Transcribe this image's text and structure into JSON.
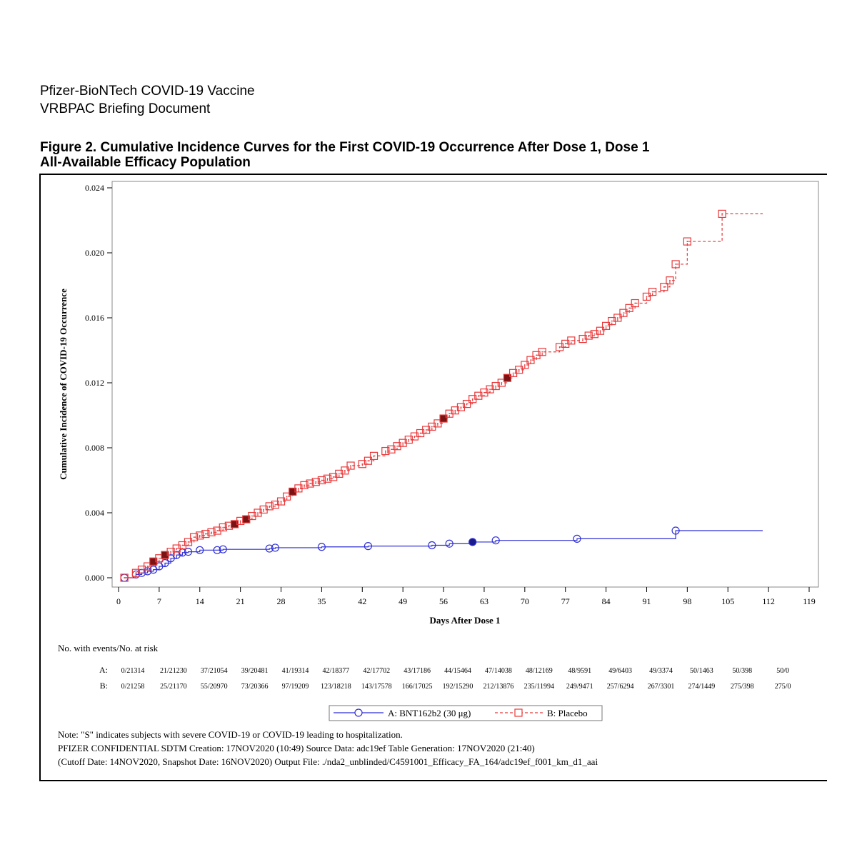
{
  "header": {
    "line1": "Pfizer-BioNTech COVID-19 Vaccine",
    "line2": "VRBPAC Briefing Document"
  },
  "figure": {
    "title_line1": "Figure 2. Cumulative Incidence Curves for the First COVID-19 Occurrence After Dose 1, Dose 1",
    "title_line2": "All-Available Efficacy Population"
  },
  "chart_data": {
    "type": "line",
    "subtype": "step (Kaplan-Meier cumulative incidence)",
    "xlabel": "Days After Dose 1",
    "ylabel": "Cumulative Incidence of COVID-19 Occurrence",
    "xlim": [
      0,
      119
    ],
    "ylim": [
      0,
      0.024
    ],
    "xticks": [
      0,
      7,
      14,
      21,
      28,
      35,
      42,
      49,
      56,
      63,
      70,
      77,
      84,
      91,
      98,
      105,
      112,
      119
    ],
    "yticks": [
      "0.000",
      "0.004",
      "0.008",
      "0.012",
      "0.016",
      "0.020",
      "0.024"
    ],
    "grid": false,
    "legend_position": "bottom",
    "series": [
      {
        "name": "A: BNT162b2 (30 μg)",
        "color": "#2f2fd6",
        "marker": "circle",
        "line_style": "solid",
        "points": [
          [
            1,
            0.0
          ],
          [
            3,
            0.0002
          ],
          [
            4,
            0.0003
          ],
          [
            5,
            0.0004
          ],
          [
            6,
            0.0005
          ],
          [
            7,
            0.0007
          ],
          [
            8,
            0.0009
          ],
          [
            9,
            0.0012
          ],
          [
            10,
            0.0014
          ],
          [
            11,
            0.00155
          ],
          [
            12,
            0.0016
          ],
          [
            14,
            0.0017
          ],
          [
            17,
            0.0017
          ],
          [
            18,
            0.00175
          ],
          [
            26,
            0.0018
          ],
          [
            27,
            0.00185
          ],
          [
            35,
            0.0019
          ],
          [
            43,
            0.00195
          ],
          [
            54,
            0.002
          ],
          [
            57,
            0.0021
          ],
          [
            61,
            0.0022
          ],
          [
            65,
            0.0023
          ],
          [
            79,
            0.0024
          ],
          [
            96,
            0.0029
          ]
        ],
        "end_x": 111,
        "severe_points": [
          [
            61,
            0.0022
          ]
        ]
      },
      {
        "name": "B: Placebo",
        "color": "#e8383a",
        "marker": "square",
        "line_style": "dashed",
        "points": [
          [
            1,
            0.0
          ],
          [
            3,
            0.0003
          ],
          [
            4,
            0.0005
          ],
          [
            5,
            0.0007
          ],
          [
            6,
            0.001
          ],
          [
            7,
            0.0012
          ],
          [
            8,
            0.0014
          ],
          [
            9,
            0.0016
          ],
          [
            10,
            0.0018
          ],
          [
            11,
            0.002
          ],
          [
            12,
            0.0022
          ],
          [
            13,
            0.0025
          ],
          [
            14,
            0.0026
          ],
          [
            15,
            0.0027
          ],
          [
            16,
            0.0028
          ],
          [
            17,
            0.0029
          ],
          [
            18,
            0.0031
          ],
          [
            19,
            0.0032
          ],
          [
            20,
            0.0033
          ],
          [
            21,
            0.0035
          ],
          [
            22,
            0.0036
          ],
          [
            23,
            0.0038
          ],
          [
            24,
            0.004
          ],
          [
            25,
            0.0042
          ],
          [
            26,
            0.0044
          ],
          [
            27,
            0.0045
          ],
          [
            28,
            0.0047
          ],
          [
            29,
            0.005
          ],
          [
            30,
            0.0053
          ],
          [
            31,
            0.0055
          ],
          [
            32,
            0.0057
          ],
          [
            33,
            0.0058
          ],
          [
            34,
            0.0059
          ],
          [
            35,
            0.006
          ],
          [
            36,
            0.0061
          ],
          [
            37,
            0.0062
          ],
          [
            38,
            0.0064
          ],
          [
            39,
            0.0066
          ],
          [
            40,
            0.0069
          ],
          [
            42,
            0.007
          ],
          [
            43,
            0.0072
          ],
          [
            44,
            0.0075
          ],
          [
            46,
            0.0078
          ],
          [
            47,
            0.0079
          ],
          [
            48,
            0.0081
          ],
          [
            49,
            0.0083
          ],
          [
            50,
            0.0085
          ],
          [
            51,
            0.0087
          ],
          [
            52,
            0.0089
          ],
          [
            53,
            0.0091
          ],
          [
            54,
            0.0093
          ],
          [
            55,
            0.0095
          ],
          [
            56,
            0.0098
          ],
          [
            57,
            0.0101
          ],
          [
            58,
            0.0103
          ],
          [
            59,
            0.0105
          ],
          [
            60,
            0.0107
          ],
          [
            61,
            0.011
          ],
          [
            62,
            0.0112
          ],
          [
            63,
            0.0114
          ],
          [
            64,
            0.0116
          ],
          [
            65,
            0.0118
          ],
          [
            66,
            0.012
          ],
          [
            67,
            0.0123
          ],
          [
            68,
            0.0126
          ],
          [
            69,
            0.0128
          ],
          [
            70,
            0.0131
          ],
          [
            71,
            0.0134
          ],
          [
            72,
            0.0137
          ],
          [
            73,
            0.0139
          ],
          [
            76,
            0.0142
          ],
          [
            77,
            0.0144
          ],
          [
            78,
            0.0146
          ],
          [
            80,
            0.0147
          ],
          [
            81,
            0.0149
          ],
          [
            82,
            0.015
          ],
          [
            83,
            0.0152
          ],
          [
            84,
            0.0155
          ],
          [
            85,
            0.0158
          ],
          [
            86,
            0.016
          ],
          [
            87,
            0.0163
          ],
          [
            88,
            0.0166
          ],
          [
            89,
            0.0169
          ],
          [
            91,
            0.0173
          ],
          [
            92,
            0.0176
          ],
          [
            94,
            0.0179
          ],
          [
            95,
            0.0183
          ],
          [
            96,
            0.0193
          ],
          [
            98,
            0.0207
          ],
          [
            104,
            0.0224
          ]
        ],
        "end_x": 111,
        "severe_points": [
          [
            6,
            0.001
          ],
          [
            8,
            0.0014
          ],
          [
            20,
            0.0033
          ],
          [
            22,
            0.0036
          ],
          [
            30,
            0.0053
          ],
          [
            56,
            0.0098
          ],
          [
            67,
            0.0123
          ]
        ]
      }
    ],
    "risk_table": {
      "title": "No. with events/No. at risk",
      "rows": [
        {
          "label": "A:",
          "values": [
            "0/21314",
            "21/21230",
            "37/21054",
            "39/20481",
            "41/19314",
            "42/18377",
            "42/17702",
            "43/17186",
            "44/15464",
            "47/14038",
            "48/12169",
            "48/9591",
            "49/6403",
            "49/3374",
            "50/1463",
            "50/398",
            "50/0"
          ]
        },
        {
          "label": "B:",
          "values": [
            "0/21258",
            "25/21170",
            "55/20970",
            "73/20366",
            "97/19209",
            "123/18218",
            "143/17578",
            "166/17025",
            "192/15290",
            "212/13876",
            "235/11994",
            "249/9471",
            "257/6294",
            "267/3301",
            "274/1449",
            "275/398",
            "275/0"
          ]
        }
      ]
    }
  },
  "notes": {
    "line1": "Note: \"S\" indicates subjects with severe COVID-19 or COVID-19 leading to hospitalization.",
    "line2": "PFIZER CONFIDENTIAL  SDTM Creation: 17NOV2020 (10:49)  Source Data: adc19ef  Table Generation: 17NOV2020 (21:40)",
    "line3": "(Cutoff Date: 14NOV2020, Snapshot Date: 16NOV2020) Output File: ./nda2_unblinded/C4591001_Efficacy_FA_164/adc19ef_f001_km_d1_aai"
  }
}
